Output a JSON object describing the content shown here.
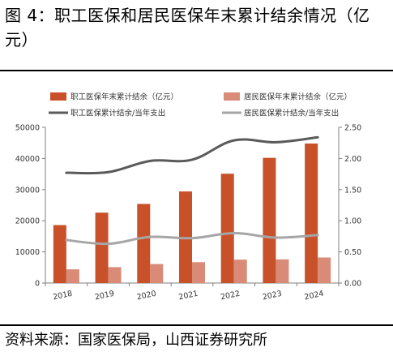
{
  "title": "图 4：职工医保和居民医保年末累计结余情况（亿元）",
  "source": "资料来源：国家医保局，山西证券研究所",
  "chart_data": {
    "type": "bar",
    "categories": [
      "2018",
      "2019",
      "2020",
      "2021",
      "2022",
      "2023",
      "2024"
    ],
    "series": [
      {
        "name": "职工医保年末累计结余（亿元）",
        "type": "bar",
        "axis": "left",
        "color": "#c9512a",
        "values": [
          18600,
          22600,
          25400,
          29400,
          35100,
          40200,
          44800
        ]
      },
      {
        "name": "居民医保年末累计结余（亿元）",
        "type": "bar",
        "axis": "left",
        "color": "#d98b78",
        "values": [
          4400,
          5100,
          6100,
          6700,
          7500,
          7600,
          8200
        ]
      },
      {
        "name": "职工医保累计结余/当年支出",
        "type": "line",
        "axis": "right",
        "color": "#5a5a5a",
        "values": [
          1.77,
          1.78,
          1.96,
          1.98,
          2.29,
          2.26,
          2.34
        ]
      },
      {
        "name": "居民医保累计结余/当年支出",
        "type": "line",
        "axis": "right",
        "color": "#a6a6a6",
        "values": [
          0.69,
          0.63,
          0.74,
          0.72,
          0.8,
          0.73,
          0.77
        ]
      }
    ],
    "yleft": {
      "ylim": [
        0,
        50000
      ],
      "ticks": [
        "0",
        "10000",
        "20000",
        "30000",
        "40000",
        "50000"
      ]
    },
    "yright": {
      "ylim": [
        0,
        2.5
      ],
      "ticks": [
        "0.00",
        "0.50",
        "1.00",
        "1.50",
        "2.00",
        "2.50"
      ]
    },
    "grid": false,
    "legend": "top"
  }
}
